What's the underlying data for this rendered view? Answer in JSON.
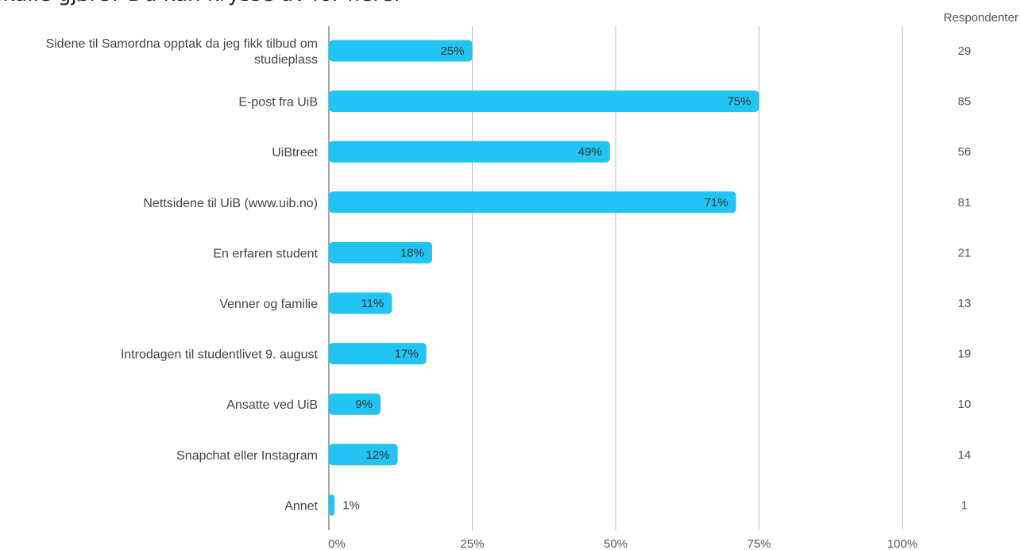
{
  "page": {
    "title": "skulle gjøre? Du kan krysse av for flere.",
    "respondents_header": "Respondenter"
  },
  "colors": {
    "bar": "#21C4F3",
    "grid": "#BDBDBD",
    "axis": "#888888"
  },
  "chart_data": {
    "type": "bar",
    "orientation": "horizontal",
    "categories": [
      [
        "Sidene til Samordna opptak da jeg fikk tilbud om",
        "studieplass"
      ],
      [
        "E-post fra UiB"
      ],
      [
        "UiBtreet"
      ],
      [
        "Nettsidene til UiB (www.uib.no)"
      ],
      [
        "En erfaren student"
      ],
      [
        "Venner og familie"
      ],
      [
        "Introdagen til studentlivet 9. august"
      ],
      [
        "Ansatte ved UiB"
      ],
      [
        "Snapchat eller Instagram"
      ],
      [
        "Annet"
      ]
    ],
    "values": [
      25,
      75,
      49,
      71,
      18,
      11,
      17,
      9,
      12,
      1
    ],
    "value_labels": [
      "25%",
      "75%",
      "49%",
      "71%",
      "18%",
      "11%",
      "17%",
      "9%",
      "12%",
      "1%"
    ],
    "respondents": [
      "29",
      "85",
      "56",
      "81",
      "21",
      "13",
      "19",
      "10",
      "14",
      "1"
    ],
    "xlim": [
      0,
      100
    ],
    "x_ticks": [
      0,
      25,
      50,
      75,
      100
    ],
    "x_tick_labels": [
      "0%",
      "25%",
      "50%",
      "75%",
      "100%"
    ],
    "grid": true
  }
}
